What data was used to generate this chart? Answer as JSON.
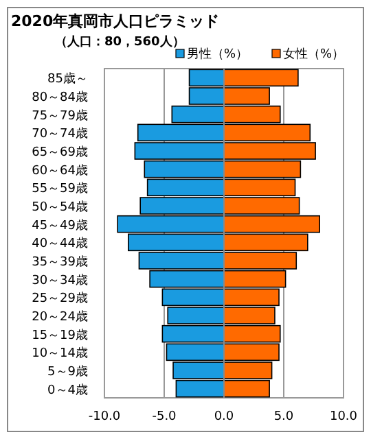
{
  "chart_data": {
    "type": "bar",
    "orientation": "horizontal",
    "stacked": true,
    "title": "2020年真岡市人口ピラミッド",
    "subtitle": "（人口：80，560人）",
    "categories": [
      "85歳～",
      "80～84歳",
      "75～79歳",
      "70～74歳",
      "65～69歳",
      "60～64歳",
      "55～59歳",
      "50～54歳",
      "45～49歳",
      "40～44歳",
      "35～39歳",
      "30～34歳",
      "25～29歳",
      "20～24歳",
      "15～19歳",
      "10～14歳",
      "5～9歳",
      "0～4歳"
    ],
    "series": [
      {
        "name": "男性（%）",
        "color": "#1a9be0",
        "values": [
          -2.9,
          -2.9,
          -4.35,
          -7.2,
          -7.45,
          -6.65,
          -6.4,
          -7.0,
          -8.9,
          -8.0,
          -7.1,
          -6.2,
          -5.15,
          -4.7,
          -5.15,
          -4.8,
          -4.25,
          -4.0
        ]
      },
      {
        "name": "女性（%）",
        "color": "#ff6a00",
        "values": [
          6.2,
          3.8,
          4.7,
          7.2,
          7.65,
          6.4,
          5.95,
          6.3,
          8.0,
          7.0,
          6.05,
          5.15,
          4.6,
          4.25,
          4.7,
          4.6,
          4.0,
          3.8
        ]
      }
    ],
    "xlim": [
      -10,
      10
    ],
    "xticks": [
      {
        "value": -10,
        "label": "-10.0"
      },
      {
        "value": -5,
        "label": "-5.0"
      },
      {
        "value": 0,
        "label": "0.0"
      },
      {
        "value": 5,
        "label": "5.0"
      },
      {
        "value": 10,
        "label": "10.0"
      }
    ],
    "grid": "x",
    "legend": "top right"
  }
}
